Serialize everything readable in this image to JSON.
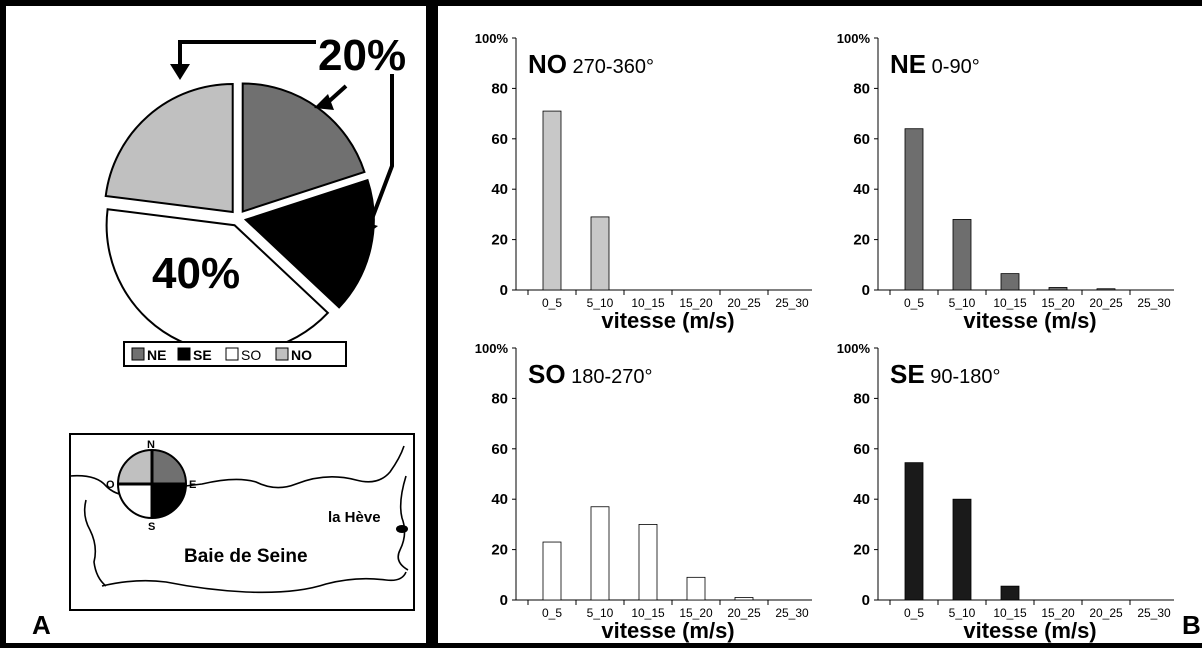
{
  "panel_a": {
    "label": "A",
    "pie_labels": {
      "big": "40%",
      "top": "20%"
    },
    "legend": [
      {
        "key": "NE",
        "color": "#707070"
      },
      {
        "key": "SE",
        "color": "#000000"
      },
      {
        "key": "SO",
        "color": "#ffffff"
      },
      {
        "key": "NO",
        "color": "#c0c0c0"
      }
    ],
    "map": {
      "compass": {
        "n": "N",
        "e": "E",
        "s": "S",
        "o": "O"
      },
      "place": "la Hève",
      "bay": "Baie de Seine"
    }
  },
  "panel_b": {
    "label": "B"
  },
  "chart_data": [
    {
      "type": "pie",
      "labels": [
        "NE",
        "SE",
        "SO",
        "NO"
      ],
      "values": [
        20,
        17,
        40,
        23
      ],
      "colors": [
        "#707070",
        "#000000",
        "#ffffff",
        "#c0c0c0"
      ],
      "annotations": [
        "20%",
        "40%"
      ]
    },
    {
      "type": "bar",
      "title_bold": "NO",
      "title_rest": "270-360°",
      "color": "#c8c8c8",
      "categories": [
        "0_5",
        "5_10",
        "10_15",
        "15_20",
        "20_25",
        "25_30"
      ],
      "values": [
        71,
        29,
        0,
        0,
        0,
        0
      ],
      "xlabel": "vitesse (m/s)",
      "ylim": [
        0,
        100
      ],
      "yticks": [
        "0",
        "20",
        "40",
        "60",
        "80",
        "100%"
      ]
    },
    {
      "type": "bar",
      "title_bold": "NE",
      "title_rest": "0-90°",
      "color": "#6e6e6e",
      "categories": [
        "0_5",
        "5_10",
        "10_15",
        "15_20",
        "20_25",
        "25_30"
      ],
      "values": [
        64,
        28,
        6.5,
        1,
        0.5,
        0
      ],
      "xlabel": "vitesse (m/s)",
      "ylim": [
        0,
        100
      ],
      "yticks": [
        "0",
        "20",
        "40",
        "60",
        "80",
        "100%"
      ]
    },
    {
      "type": "bar",
      "title_bold": "SO",
      "title_rest": "180-270°",
      "color": "#ffffff",
      "categories": [
        "0_5",
        "5_10",
        "10_15",
        "15_20",
        "20_25",
        "25_30"
      ],
      "values": [
        23,
        37,
        30,
        9,
        1,
        0
      ],
      "xlabel": "vitesse (m/s)",
      "ylim": [
        0,
        100
      ],
      "yticks": [
        "0",
        "20",
        "40",
        "60",
        "80",
        "100%"
      ]
    },
    {
      "type": "bar",
      "title_bold": "SE",
      "title_rest": "90-180°",
      "color": "#1a1a1a",
      "categories": [
        "0_5",
        "5_10",
        "10_15",
        "15_20",
        "20_25",
        "25_30"
      ],
      "values": [
        54.5,
        40,
        5.5,
        0,
        0,
        0
      ],
      "xlabel": "vitesse (m/s)",
      "ylim": [
        0,
        100
      ],
      "yticks": [
        "0",
        "20",
        "40",
        "60",
        "80",
        "100%"
      ]
    }
  ]
}
